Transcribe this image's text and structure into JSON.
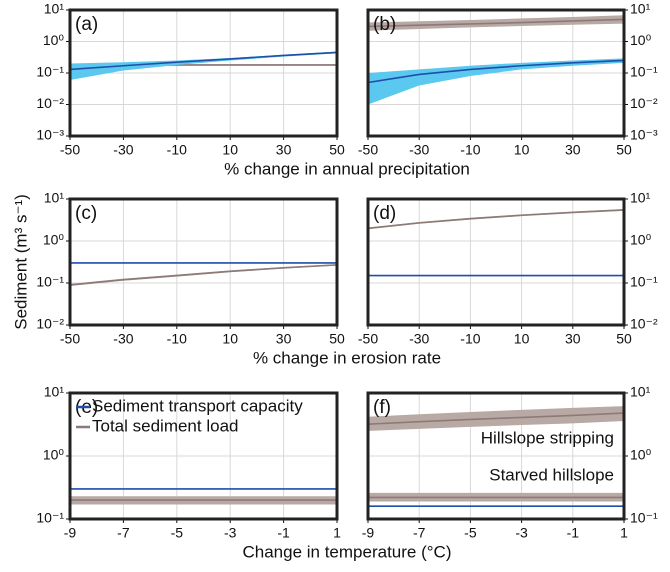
{
  "chart_data": [
    {
      "type": "line",
      "title": "(a)",
      "log_y": true,
      "grid": true,
      "yaxis_side": "left",
      "xlabel": "% change in annual precipitation",
      "x": [
        -50,
        -30,
        -10,
        10,
        30,
        50
      ],
      "xlim": [
        -50,
        50
      ],
      "xticks": [
        -50,
        -30,
        -10,
        10,
        30,
        50
      ],
      "ylim": [
        0.001,
        10
      ],
      "yticks": [
        {
          "value": 10,
          "label": "10¹"
        },
        {
          "value": 1,
          "label": "10⁰"
        },
        {
          "value": 0.1,
          "label": "10⁻¹"
        },
        {
          "value": 0.01,
          "label": "10⁻²"
        },
        {
          "value": 0.001,
          "label": "10⁻³"
        }
      ],
      "series": [
        {
          "color": "#8c7a78",
          "band_color": "#b9a9a4",
          "values": [
            0.18,
            0.18,
            0.18,
            0.18,
            0.18,
            0.18
          ],
          "lower": [
            0.17,
            0.17,
            0.17,
            0.17,
            0.17,
            0.17
          ],
          "upper": [
            0.19,
            0.19,
            0.19,
            0.19,
            0.19,
            0.19
          ]
        },
        {
          "color": "#1f4fa8",
          "band_color": "#5bc8f0",
          "values": [
            0.13,
            0.17,
            0.22,
            0.28,
            0.36,
            0.45
          ],
          "lower": [
            0.06,
            0.12,
            0.18,
            0.25,
            0.33,
            0.42
          ],
          "upper": [
            0.2,
            0.22,
            0.25,
            0.3,
            0.38,
            0.48
          ]
        }
      ]
    },
    {
      "type": "line",
      "title": "(b)",
      "log_y": true,
      "grid": true,
      "yaxis_side": "right",
      "x": [
        -50,
        -30,
        -10,
        10,
        30,
        50
      ],
      "xlim": [
        -50,
        50
      ],
      "xticks": [
        -50,
        -30,
        -10,
        10,
        30,
        50
      ],
      "ylim": [
        0.001,
        10
      ],
      "yticks": [
        {
          "value": 10,
          "label": "10¹"
        },
        {
          "value": 1,
          "label": "10⁰"
        },
        {
          "value": 0.1,
          "label": "10⁻¹"
        },
        {
          "value": 0.01,
          "label": "10⁻²"
        },
        {
          "value": 0.001,
          "label": "10⁻³"
        }
      ],
      "series": [
        {
          "color": "#8c7a78",
          "band_color": "#b9a9a4",
          "values": [
            3.0,
            3.3,
            3.6,
            4.0,
            4.5,
            5.0
          ],
          "lower": [
            2.2,
            2.5,
            2.8,
            3.1,
            3.4,
            3.7
          ],
          "upper": [
            4.0,
            4.4,
            4.8,
            5.4,
            6.0,
            6.8
          ]
        },
        {
          "color": "#1f4fa8",
          "band_color": "#5bc8f0",
          "values": [
            0.05,
            0.09,
            0.13,
            0.17,
            0.21,
            0.25
          ],
          "lower": [
            0.01,
            0.04,
            0.08,
            0.13,
            0.17,
            0.21
          ],
          "upper": [
            0.1,
            0.13,
            0.17,
            0.21,
            0.25,
            0.29
          ]
        }
      ]
    },
    {
      "type": "line",
      "title": "(c)",
      "log_y": true,
      "grid": true,
      "yaxis_side": "left",
      "xlabel": "% change in erosion rate",
      "ylabel": "Sediment (m³ s⁻¹)",
      "x": [
        -50,
        -30,
        -10,
        10,
        30,
        50
      ],
      "xlim": [
        -50,
        50
      ],
      "xticks": [
        -50,
        -30,
        -10,
        10,
        30,
        50
      ],
      "ylim": [
        0.01,
        10
      ],
      "yticks": [
        {
          "value": 10,
          "label": "10¹"
        },
        {
          "value": 1,
          "label": "10⁰"
        },
        {
          "value": 0.1,
          "label": "10⁻¹"
        },
        {
          "value": 0.01,
          "label": "10⁻²"
        }
      ],
      "series": [
        {
          "color": "#1f4fa8",
          "values": [
            0.3,
            0.3,
            0.3,
            0.3,
            0.3,
            0.3
          ]
        },
        {
          "color": "#8c7a78",
          "band_color": "#b9a9a4",
          "values": [
            0.09,
            0.12,
            0.15,
            0.19,
            0.23,
            0.27
          ],
          "lower": [
            0.085,
            0.113,
            0.142,
            0.18,
            0.22,
            0.26
          ],
          "upper": [
            0.095,
            0.127,
            0.158,
            0.2,
            0.24,
            0.28
          ]
        }
      ]
    },
    {
      "type": "line",
      "title": "(d)",
      "log_y": true,
      "grid": true,
      "yaxis_side": "right",
      "x": [
        -50,
        -30,
        -10,
        10,
        30,
        50
      ],
      "xlim": [
        -50,
        50
      ],
      "xticks": [
        -50,
        -30,
        -10,
        10,
        30,
        50
      ],
      "ylim": [
        0.01,
        10
      ],
      "yticks": [
        {
          "value": 10,
          "label": "10¹"
        },
        {
          "value": 1,
          "label": "10⁰"
        },
        {
          "value": 0.1,
          "label": "10⁻¹"
        },
        {
          "value": 0.01,
          "label": "10⁻²"
        }
      ],
      "series": [
        {
          "color": "#1f4fa8",
          "values": [
            0.15,
            0.15,
            0.15,
            0.15,
            0.15,
            0.15
          ]
        },
        {
          "color": "#8c7a78",
          "band_color": "#b9a9a4",
          "values": [
            2.0,
            2.7,
            3.4,
            4.1,
            4.8,
            5.5
          ],
          "lower": [
            1.9,
            2.57,
            3.23,
            3.9,
            4.56,
            5.23
          ],
          "upper": [
            2.1,
            2.83,
            3.57,
            4.3,
            5.04,
            5.77
          ]
        }
      ]
    },
    {
      "type": "line",
      "title": "(e)",
      "log_y": true,
      "grid": true,
      "yaxis_side": "left",
      "legend": "upper left",
      "xlabel": "Change in temperature (°C)",
      "x": [
        -9,
        -7,
        -5,
        -3,
        -1,
        1
      ],
      "xlim": [
        -9,
        1
      ],
      "xticks": [
        -9,
        -7,
        -5,
        -3,
        -1,
        1
      ],
      "ylim": [
        0.1,
        10
      ],
      "yticks": [
        {
          "value": 10,
          "label": "10¹"
        },
        {
          "value": 1,
          "label": "10⁰"
        },
        {
          "value": 0.1,
          "label": "10⁻¹"
        }
      ],
      "series": [
        {
          "name": "Sediment transport capacity",
          "color": "#1f4fa8",
          "values": [
            0.3,
            0.3,
            0.3,
            0.3,
            0.3,
            0.3
          ]
        },
        {
          "name": "Total sediment load",
          "color": "#8c7a78",
          "band_color": "#b9a9a4",
          "values": [
            0.2,
            0.2,
            0.2,
            0.2,
            0.2,
            0.2
          ],
          "lower": [
            0.17,
            0.17,
            0.17,
            0.17,
            0.17,
            0.17
          ],
          "upper": [
            0.23,
            0.23,
            0.23,
            0.23,
            0.23,
            0.23
          ]
        }
      ]
    },
    {
      "type": "line",
      "title": "(f)",
      "log_y": true,
      "grid": true,
      "yaxis_side": "right",
      "annotations": [
        "Hillslope stripping",
        "Starved hillslope"
      ],
      "x": [
        -9,
        -7,
        -5,
        -3,
        -1,
        1
      ],
      "xlim": [
        -9,
        1
      ],
      "xticks": [
        -9,
        -7,
        -5,
        -3,
        -1,
        1
      ],
      "ylim": [
        0.1,
        10
      ],
      "yticks": [
        {
          "value": 10,
          "label": "10¹"
        },
        {
          "value": 1,
          "label": "10⁰"
        },
        {
          "value": 0.1,
          "label": "10⁻¹"
        }
      ],
      "series": [
        {
          "color": "#8c7a78",
          "band_color": "#b9a9a4",
          "values": [
            3.2,
            3.5,
            3.8,
            4.1,
            4.4,
            4.8
          ],
          "lower": [
            2.5,
            2.7,
            2.9,
            3.1,
            3.3,
            3.6
          ],
          "upper": [
            4.2,
            4.6,
            5.0,
            5.4,
            5.8,
            6.2
          ]
        },
        {
          "color": "#1f4fa8",
          "values": [
            0.16,
            0.16,
            0.16,
            0.16,
            0.16,
            0.16
          ]
        },
        {
          "color": "#8c7a78",
          "band_color": "#b9a9a4",
          "values": [
            0.22,
            0.22,
            0.22,
            0.22,
            0.22,
            0.22
          ],
          "lower": [
            0.19,
            0.19,
            0.19,
            0.19,
            0.19,
            0.19
          ],
          "upper": [
            0.26,
            0.26,
            0.26,
            0.26,
            0.26,
            0.26
          ]
        }
      ]
    }
  ]
}
